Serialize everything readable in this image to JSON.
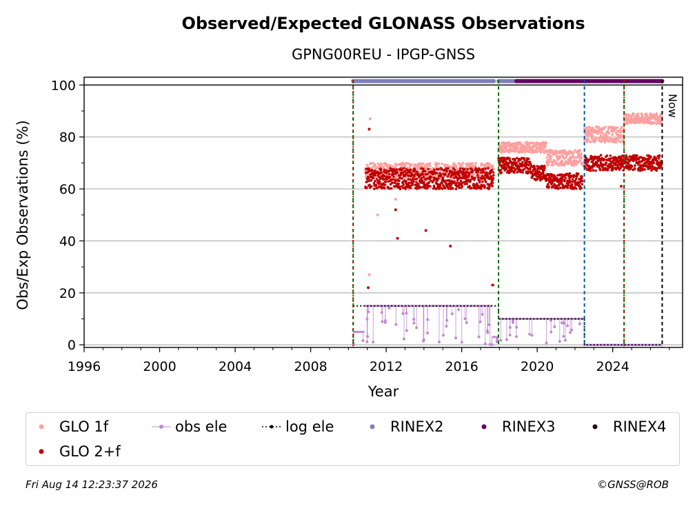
{
  "chart_data": {
    "type": "scatter",
    "title": "Observed/Expected GLONASS Observations",
    "subtitle": "GPNG00REU - IPGP-GNSS",
    "xlabel": "Year",
    "ylabel": "Obs/Exp Observations (%)",
    "xlim": [
      1996,
      2027.7
    ],
    "ylim": [
      -1,
      103
    ],
    "xticks": [
      1996,
      2000,
      2004,
      2008,
      2012,
      2016,
      2020,
      2024
    ],
    "yticks": [
      0,
      20,
      40,
      60,
      80,
      100
    ],
    "grid": "horizontal",
    "now_label": "Now",
    "now_year": 2026.62,
    "vlines": [
      {
        "x": 2010.25,
        "color": "#007000"
      },
      {
        "x": 2010.25,
        "color": "#cc0000"
      },
      {
        "x": 2017.95,
        "color": "#007000"
      },
      {
        "x": 2022.5,
        "color": "#0055aa"
      },
      {
        "x": 2024.6,
        "color": "#007000"
      },
      {
        "x": 2024.6,
        "color": "#cc0000"
      },
      {
        "x": 2026.62,
        "color": "#000000"
      }
    ],
    "series": [
      {
        "name": "GLO 1f",
        "color": "#ffa0a0",
        "segments": [
          {
            "x0": 2010.9,
            "x1": 2017.7,
            "y": 67,
            "spread": 3
          },
          {
            "x0": 2017.95,
            "x1": 2020.5,
            "y": 76,
            "spread": 2
          },
          {
            "x0": 2020.5,
            "x1": 2022.4,
            "y": 72,
            "spread": 3
          },
          {
            "x0": 2022.5,
            "x1": 2024.6,
            "y": 81,
            "spread": 3
          },
          {
            "x0": 2024.6,
            "x1": 2026.6,
            "y": 87,
            "spread": 2
          }
        ],
        "outliers": [
          [
            2011.15,
            87
          ],
          [
            2011.1,
            27
          ],
          [
            2011.55,
            50
          ],
          [
            2012.5,
            56
          ],
          [
            2013.2,
            60
          ],
          [
            2017.6,
            23
          ]
        ]
      },
      {
        "name": "GLO 2+f",
        "color": "#c00000",
        "segments": [
          {
            "x0": 2010.9,
            "x1": 2017.7,
            "y": 64,
            "spread": 4
          },
          {
            "x0": 2017.95,
            "x1": 2019.7,
            "y": 69,
            "spread": 3
          },
          {
            "x0": 2019.7,
            "x1": 2020.5,
            "y": 66,
            "spread": 3
          },
          {
            "x0": 2020.5,
            "x1": 2022.4,
            "y": 63,
            "spread": 3
          },
          {
            "x0": 2022.5,
            "x1": 2024.6,
            "y": 70,
            "spread": 3
          },
          {
            "x0": 2024.6,
            "x1": 2026.6,
            "y": 70,
            "spread": 3
          }
        ],
        "outliers": [
          [
            2011.1,
            83
          ],
          [
            2011.05,
            22
          ],
          [
            2012.6,
            41
          ],
          [
            2014.1,
            44
          ],
          [
            2015.4,
            38
          ],
          [
            2012.5,
            52
          ],
          [
            2017.65,
            23
          ],
          [
            2024.45,
            61
          ]
        ]
      },
      {
        "name": "obs ele",
        "color": "#c08ad0",
        "segments": [
          {
            "x0": 2010.25,
            "x1": 2010.85,
            "y": 5,
            "spread": 0
          },
          {
            "x0": 2010.85,
            "x1": 2017.6,
            "y": 15,
            "spread": 0
          },
          {
            "x0": 2017.6,
            "x1": 2017.95,
            "y": 3,
            "spread": 3
          },
          {
            "x0": 2017.95,
            "x1": 2022.5,
            "y": 10,
            "spread": 0
          },
          {
            "x0": 2022.5,
            "x1": 2026.62,
            "y": 0,
            "spread": 0
          }
        ]
      },
      {
        "name": "log ele",
        "color": "#000000",
        "steps": [
          [
            2010.25,
            15
          ],
          [
            2017.95,
            15
          ],
          [
            2017.95,
            10
          ],
          [
            2022.5,
            10
          ],
          [
            2022.5,
            0
          ],
          [
            2026.62,
            0
          ]
        ]
      },
      {
        "name": "RINEX2",
        "color": "#7f7fbf",
        "bars": [
          [
            2010.25,
            2017.7
          ],
          [
            2017.95,
            2018.9
          ]
        ],
        "y": 101.5
      },
      {
        "name": "RINEX3",
        "color": "#660066",
        "bars": [
          [
            2018.9,
            2026.62
          ]
        ],
        "y": 101.5
      },
      {
        "name": "RINEX4",
        "color": "#220022",
        "bars": []
      }
    ]
  },
  "footer": {
    "timestamp": "Fri Aug 14 12:23:37 2026",
    "credit": "©GNSS@ROB"
  }
}
